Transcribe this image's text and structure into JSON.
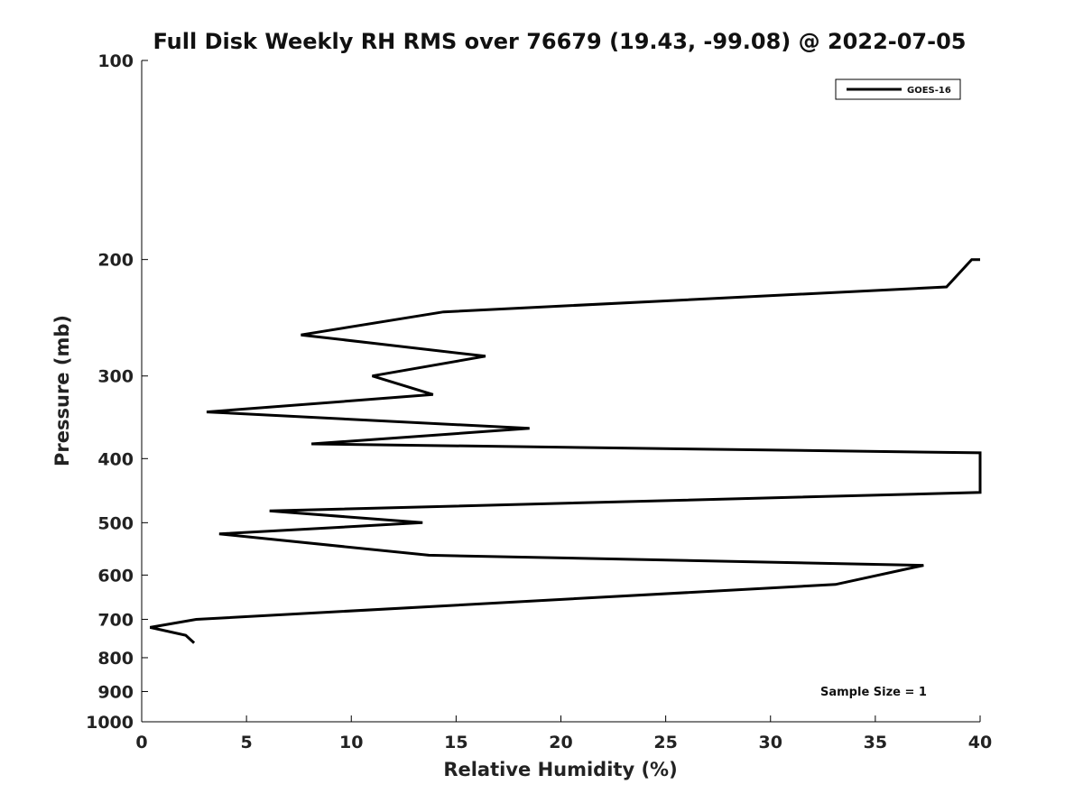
{
  "chart_data": {
    "type": "line",
    "title": "Full Disk Weekly RH RMS over 76679 (19.43, -99.08) @ 2022-07-05",
    "xlabel": "Relative Humidity (%)",
    "ylabel": "Pressure (mb)",
    "xlim": [
      0,
      40
    ],
    "ylim": [
      100,
      1000
    ],
    "y_scale": "log",
    "y_inverted": true,
    "grid": false,
    "legend_position": "top-right",
    "x_ticks": [
      "0",
      "5",
      "10",
      "15",
      "20",
      "25",
      "30",
      "35",
      "40"
    ],
    "y_ticks": [
      {
        "value": 100,
        "label": "100"
      },
      {
        "value": 200,
        "label": "200"
      },
      {
        "value": 300,
        "label": "300"
      },
      {
        "value": 400,
        "label": "400"
      },
      {
        "value": 500,
        "label": "500"
      },
      {
        "value": 600,
        "label": "600"
      },
      {
        "value": 700,
        "label": "700"
      },
      {
        "value": 800,
        "label": "800"
      },
      {
        "value": 900,
        "label": "900"
      },
      {
        "value": 1000,
        "label": "1000"
      }
    ],
    "series": [
      {
        "name": "GOES-16",
        "color": "#000000",
        "points": [
          {
            "x": 40.0,
            "y": 200
          },
          {
            "x": 39.6,
            "y": 200
          },
          {
            "x": 38.4,
            "y": 220
          },
          {
            "x": 14.4,
            "y": 240
          },
          {
            "x": 7.6,
            "y": 260
          },
          {
            "x": 16.4,
            "y": 280
          },
          {
            "x": 11.0,
            "y": 300
          },
          {
            "x": 13.9,
            "y": 320
          },
          {
            "x": 3.1,
            "y": 340
          },
          {
            "x": 18.5,
            "y": 360
          },
          {
            "x": 8.1,
            "y": 380
          },
          {
            "x": 40.0,
            "y": 392
          },
          {
            "x": 40.0,
            "y": 450
          },
          {
            "x": 6.1,
            "y": 480
          },
          {
            "x": 13.4,
            "y": 500
          },
          {
            "x": 3.7,
            "y": 520
          },
          {
            "x": 13.7,
            "y": 560
          },
          {
            "x": 37.3,
            "y": 580
          },
          {
            "x": 33.1,
            "y": 620
          },
          {
            "x": 2.6,
            "y": 700
          },
          {
            "x": 0.4,
            "y": 720
          },
          {
            "x": 2.1,
            "y": 740
          },
          {
            "x": 2.5,
            "y": 760
          }
        ]
      }
    ],
    "annotations": [
      "Sample Size = 1"
    ]
  }
}
